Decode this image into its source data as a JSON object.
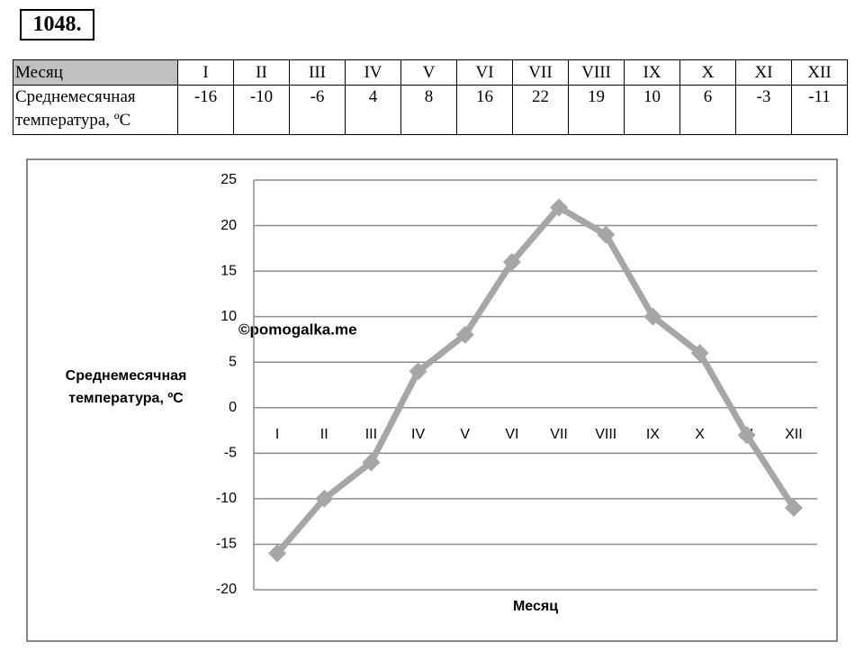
{
  "problem_number": "1048.",
  "table": {
    "header": [
      "Месяц",
      "I",
      "II",
      "III",
      "IV",
      "V",
      "VI",
      "VII",
      "VIII",
      "IX",
      "X",
      "XI",
      "XII"
    ],
    "row_label": "Среднемесячная температура, ºC",
    "values": [
      -16,
      -10,
      -6,
      4,
      8,
      16,
      22,
      19,
      10,
      6,
      -3,
      -11
    ]
  },
  "chart_data": {
    "type": "line",
    "categories": [
      "I",
      "II",
      "III",
      "IV",
      "V",
      "VI",
      "VII",
      "VIII",
      "IX",
      "X",
      "XI",
      "XII"
    ],
    "series": [
      {
        "name": "Среднемесячная температура",
        "color": "#a6a6a6",
        "values": [
          -16,
          -10,
          -6,
          4,
          8,
          16,
          22,
          19,
          10,
          6,
          -3,
          -11
        ]
      }
    ],
    "y_label": "Среднемесячная температура, ºC",
    "x_label": "Месяц",
    "watermark": "©pomogalka.me",
    "ylim": [
      -20,
      25
    ],
    "yticks": [
      -20,
      -15,
      -10,
      -5,
      0,
      5,
      10,
      15,
      20,
      25
    ],
    "grid": true
  }
}
